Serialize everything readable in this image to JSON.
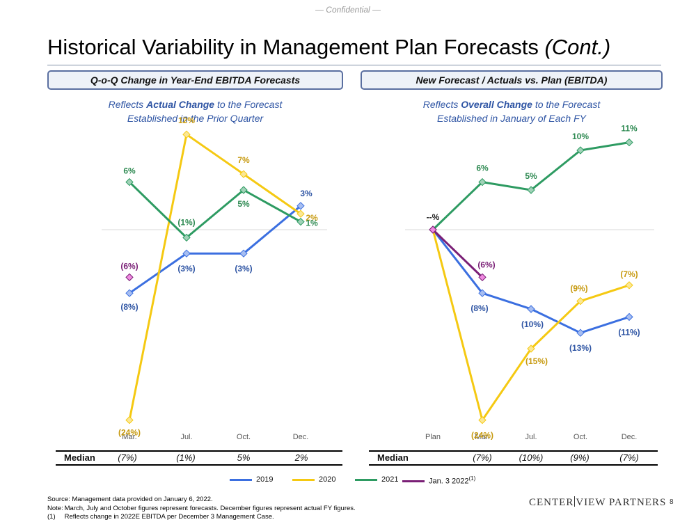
{
  "header": {
    "confidential": "— Confidential —",
    "title": "Historical Variability in Management Plan Forecasts",
    "title_suffix": "(Cont.)"
  },
  "left_panel": {
    "header": "Q-o-Q Change in Year-End EBITDA Forecasts",
    "subtitle_line1_pre": "Reflects ",
    "subtitle_line1_bold": "Actual Change",
    "subtitle_line1_post": " to the Forecast",
    "subtitle_line2": "Established in the Prior Quarter",
    "median": {
      "label": "Median",
      "values": [
        "(7%)",
        "(1%)",
        "5%",
        "2%"
      ]
    }
  },
  "right_panel": {
    "header": "New Forecast / Actuals vs. Plan (EBITDA)",
    "subtitle_line1_pre": "Reflects ",
    "subtitle_line1_bold": "Overall Change",
    "subtitle_line1_post": " to the Forecast",
    "subtitle_line2": "Established in January of Each FY",
    "median": {
      "label": "Median",
      "values": [
        "(7%)",
        "(10%)",
        "(9%)",
        "(7%)"
      ]
    }
  },
  "legend": [
    {
      "label": "2019",
      "color": "#3b6fe0"
    },
    {
      "label": "2020",
      "color": "#f5c912"
    },
    {
      "label": "2021",
      "color": "#2e9b62"
    },
    {
      "label": "Jan. 3 2022",
      "sup": "(1)",
      "color": "#7a1f76"
    }
  ],
  "footer": {
    "source_label": "Source:",
    "source": "Management data provided on January 6, 2022.",
    "note_label": "Note:",
    "note": "March, July and October figures represent forecasts. December figures represent actual FY figures.",
    "fn1_label": "(1)",
    "fn1": "Reflects change in 2022E EBITDA per December 3 Management Case."
  },
  "logo": {
    "part1": "CENTER",
    "part2": "VIEW PARTNERS"
  },
  "page_number": "8",
  "chart_data": [
    {
      "type": "line",
      "title": "Q-o-Q Change in Year-End EBITDA Forecasts",
      "categories": [
        "Mar.",
        "Jul.",
        "Oct.",
        "Dec."
      ],
      "ylim": [
        -27,
        15
      ],
      "series": [
        {
          "name": "2019",
          "color": "#3b6fe0",
          "label_color": "#2f55a4",
          "values": [
            -8,
            -3,
            -3,
            3
          ],
          "labels": [
            "(8%)",
            "(3%)",
            "(3%)",
            "3%"
          ]
        },
        {
          "name": "2020",
          "color": "#f5c912",
          "label_color": "#c79a10",
          "values": [
            -24,
            12,
            7,
            2
          ],
          "labels": [
            "(24%)",
            "12%",
            "7%",
            "2%"
          ]
        },
        {
          "name": "2021",
          "color": "#2e9b62",
          "label_color": "#2e8a52",
          "values": [
            6,
            -1,
            5,
            1
          ],
          "labels": [
            "6%",
            "(1%)",
            "5%",
            "1%"
          ]
        },
        {
          "name": "Jan. 3 2022",
          "color": "#7a1f76",
          "label_color": "#7a1f76",
          "values": [
            -6,
            null,
            null,
            null
          ],
          "labels": [
            "(6%)",
            null,
            null,
            null
          ]
        }
      ]
    },
    {
      "type": "line",
      "title": "New Forecast / Actuals vs. Plan (EBITDA)",
      "categories": [
        "Plan",
        "Mar.",
        "Jul.",
        "Oct.",
        "Dec."
      ],
      "ylim": [
        -27,
        15
      ],
      "plan_label": "--%",
      "series": [
        {
          "name": "2019",
          "color": "#3b6fe0",
          "label_color": "#2f55a4",
          "values": [
            0,
            -8,
            -10,
            -13,
            -11
          ],
          "labels": [
            null,
            "(8%)",
            "(10%)",
            "(13%)",
            "(11%)"
          ]
        },
        {
          "name": "2020",
          "color": "#f5c912",
          "label_color": "#c79a10",
          "values": [
            0,
            -24,
            -15,
            -9,
            -7
          ],
          "labels": [
            null,
            "(24%)",
            "(15%)",
            "(9%)",
            "(7%)"
          ]
        },
        {
          "name": "2021",
          "color": "#2e9b62",
          "label_color": "#2e8a52",
          "values": [
            0,
            6,
            5,
            10,
            11
          ],
          "labels": [
            null,
            "6%",
            "5%",
            "10%",
            "11%"
          ]
        },
        {
          "name": "Jan. 3 2022",
          "color": "#7a1f76",
          "label_color": "#7a1f76",
          "values": [
            0,
            -6,
            null,
            null,
            null
          ],
          "labels": [
            null,
            "(6%)",
            null,
            null,
            null
          ]
        }
      ]
    }
  ]
}
